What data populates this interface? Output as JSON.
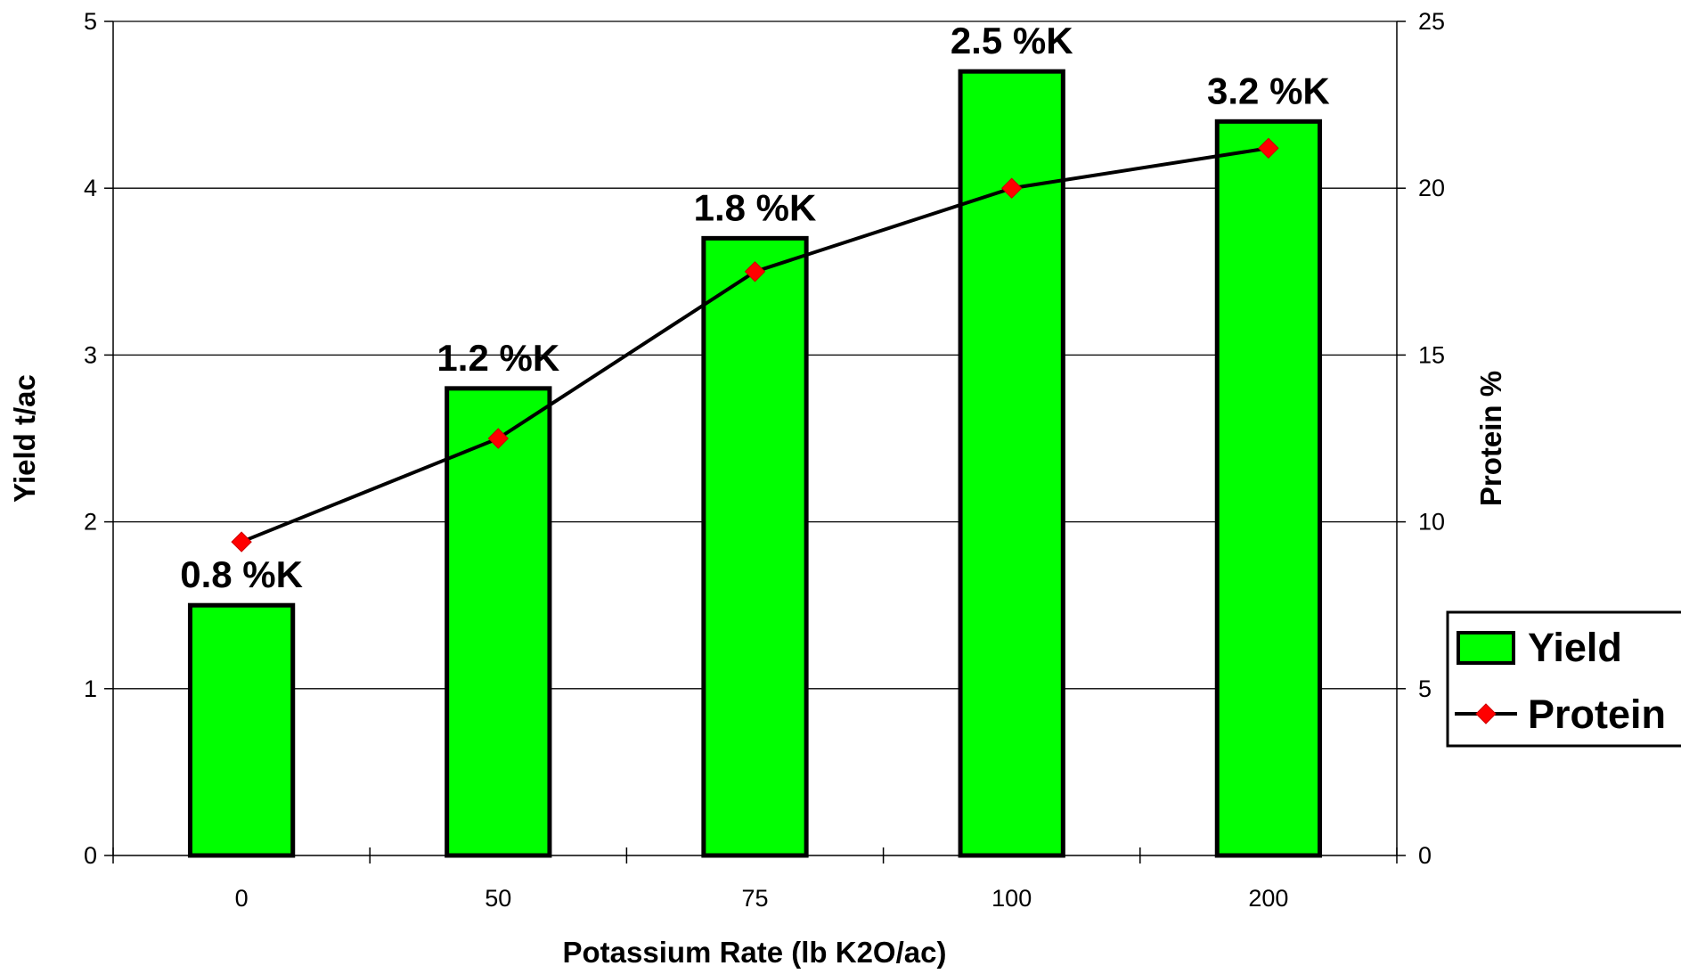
{
  "chart_data": {
    "type": "bar",
    "categories": [
      "0",
      "50",
      "75",
      "100",
      "200"
    ],
    "xlabel": "Potassium Rate (lb K2O/ac)",
    "ylabel": "Yield t/ac",
    "y2label": "Protein %",
    "ylim": [
      0,
      5
    ],
    "y2lim": [
      0,
      25
    ],
    "yticks": [
      "0",
      "1",
      "2",
      "3",
      "4",
      "5"
    ],
    "y2ticks": [
      "0",
      "5",
      "10",
      "15",
      "20",
      "25"
    ],
    "grid": true,
    "legend_position": "right",
    "series": [
      {
        "name": "Yield",
        "type": "bar",
        "axis": "left",
        "values": [
          1.5,
          2.8,
          3.7,
          4.7,
          4.4
        ],
        "color": "#00ff00"
      },
      {
        "name": "Protein",
        "type": "line",
        "axis": "right",
        "values": [
          9.4,
          12.5,
          17.5,
          20.0,
          21.2
        ],
        "color": "#000000",
        "marker_color": "#ff0000"
      }
    ],
    "bar_annotations": [
      "0.8 %K",
      "1.2 %K",
      "1.8 %K",
      "2.5 %K",
      "3.2 %K"
    ]
  }
}
